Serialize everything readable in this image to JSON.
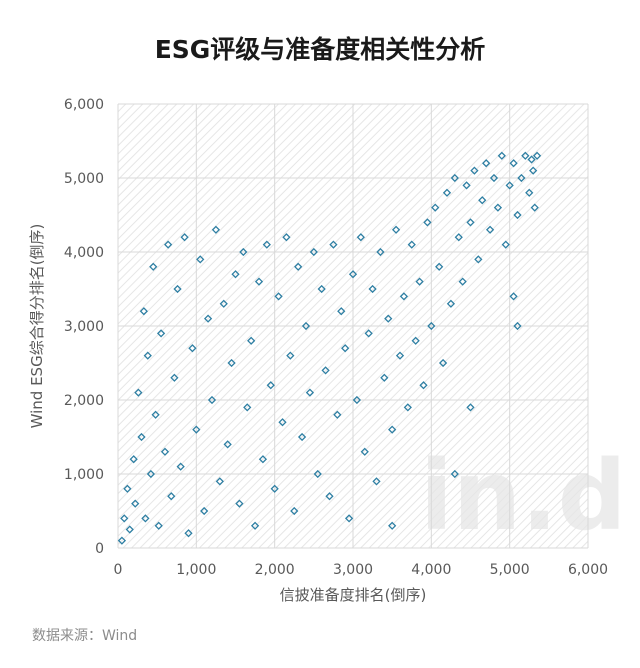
{
  "chart_data": {
    "type": "scatter",
    "title": "ESG评级与准备度相关性分析",
    "xlabel": "信披准备度排名(倒序)",
    "ylabel": "Wind ESG综合得分排名(倒序)",
    "xlim": [
      0,
      6000
    ],
    "ylim": [
      0,
      6000
    ],
    "x_ticks": [
      "0",
      "1,000",
      "2,000",
      "3,000",
      "4,000",
      "5,000",
      "6,000"
    ],
    "y_ticks": [
      "0",
      "1,000",
      "2,000",
      "3,000",
      "4,000",
      "5,000",
      "6,000"
    ],
    "grid": true,
    "marker": "diamond",
    "series_color": "#2e7fa3",
    "points": [
      [
        50,
        100
      ],
      [
        80,
        400
      ],
      [
        120,
        800
      ],
      [
        150,
        250
      ],
      [
        200,
        1200
      ],
      [
        220,
        600
      ],
      [
        260,
        2100
      ],
      [
        300,
        1500
      ],
      [
        330,
        3200
      ],
      [
        350,
        400
      ],
      [
        380,
        2600
      ],
      [
        420,
        1000
      ],
      [
        450,
        3800
      ],
      [
        480,
        1800
      ],
      [
        520,
        300
      ],
      [
        550,
        2900
      ],
      [
        600,
        1300
      ],
      [
        640,
        4100
      ],
      [
        680,
        700
      ],
      [
        720,
        2300
      ],
      [
        760,
        3500
      ],
      [
        800,
        1100
      ],
      [
        850,
        4200
      ],
      [
        900,
        200
      ],
      [
        950,
        2700
      ],
      [
        1000,
        1600
      ],
      [
        1050,
        3900
      ],
      [
        1100,
        500
      ],
      [
        1150,
        3100
      ],
      [
        1200,
        2000
      ],
      [
        1250,
        4300
      ],
      [
        1300,
        900
      ],
      [
        1350,
        3300
      ],
      [
        1400,
        1400
      ],
      [
        1450,
        2500
      ],
      [
        1500,
        3700
      ],
      [
        1550,
        600
      ],
      [
        1600,
        4000
      ],
      [
        1650,
        1900
      ],
      [
        1700,
        2800
      ],
      [
        1750,
        300
      ],
      [
        1800,
        3600
      ],
      [
        1850,
        1200
      ],
      [
        1900,
        4100
      ],
      [
        1950,
        2200
      ],
      [
        2000,
        800
      ],
      [
        2050,
        3400
      ],
      [
        2100,
        1700
      ],
      [
        2150,
        4200
      ],
      [
        2200,
        2600
      ],
      [
        2250,
        500
      ],
      [
        2300,
        3800
      ],
      [
        2350,
        1500
      ],
      [
        2400,
        3000
      ],
      [
        2450,
        2100
      ],
      [
        2500,
        4000
      ],
      [
        2550,
        1000
      ],
      [
        2600,
        3500
      ],
      [
        2650,
        2400
      ],
      [
        2700,
        700
      ],
      [
        2750,
        4100
      ],
      [
        2800,
        1800
      ],
      [
        2850,
        3200
      ],
      [
        2900,
        2700
      ],
      [
        2950,
        400
      ],
      [
        3000,
        3700
      ],
      [
        3050,
        2000
      ],
      [
        3100,
        4200
      ],
      [
        3150,
        1300
      ],
      [
        3200,
        2900
      ],
      [
        3250,
        3500
      ],
      [
        3300,
        900
      ],
      [
        3350,
        4000
      ],
      [
        3400,
        2300
      ],
      [
        3450,
        3100
      ],
      [
        3500,
        1600
      ],
      [
        3550,
        4300
      ],
      [
        3600,
        2600
      ],
      [
        3650,
        3400
      ],
      [
        3700,
        1900
      ],
      [
        3750,
        4100
      ],
      [
        3800,
        2800
      ],
      [
        3850,
        3600
      ],
      [
        3900,
        2200
      ],
      [
        3950,
        4400
      ],
      [
        4000,
        3000
      ],
      [
        4050,
        4600
      ],
      [
        4100,
        3800
      ],
      [
        4150,
        2500
      ],
      [
        4200,
        4800
      ],
      [
        4250,
        3300
      ],
      [
        4300,
        5000
      ],
      [
        4350,
        4200
      ],
      [
        4400,
        3600
      ],
      [
        4450,
        4900
      ],
      [
        4500,
        4400
      ],
      [
        4550,
        5100
      ],
      [
        4600,
        3900
      ],
      [
        4650,
        4700
      ],
      [
        4700,
        5200
      ],
      [
        4750,
        4300
      ],
      [
        4800,
        5000
      ],
      [
        4850,
        4600
      ],
      [
        4900,
        5300
      ],
      [
        4950,
        4100
      ],
      [
        5000,
        4900
      ],
      [
        5050,
        5200
      ],
      [
        5100,
        4500
      ],
      [
        5150,
        5000
      ],
      [
        5200,
        5300
      ],
      [
        5250,
        4800
      ],
      [
        5300,
        5100
      ],
      [
        5350,
        5300
      ],
      [
        5320,
        4600
      ],
      [
        5280,
        5250
      ],
      [
        5100,
        3000
      ],
      [
        4300,
        1000
      ],
      [
        4500,
        1900
      ],
      [
        5050,
        3400
      ],
      [
        3500,
        300
      ]
    ]
  },
  "source_label": "数据来源：Wind",
  "watermark_text": "in.d"
}
